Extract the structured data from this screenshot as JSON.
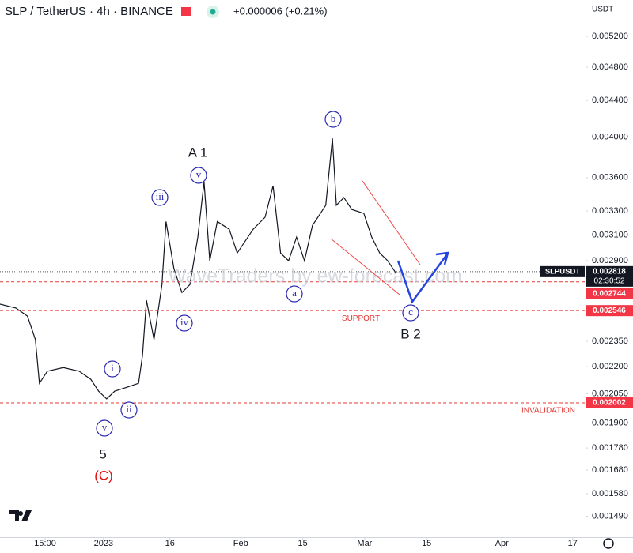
{
  "chart_data": {
    "type": "line",
    "title": "SLP / TetherUS · 4h · BINANCE",
    "change": "+0.000006 (+0.21%)",
    "currency": "USDT",
    "watermark": "WaveTraders by ew-forecast.com",
    "log_scale": true,
    "x": [
      -23.4,
      -19.8,
      -17.2,
      -15.4,
      -14.5,
      -12.7,
      -9.1,
      -5.5,
      -2.9,
      -1.1,
      0.7,
      2.5,
      5.2,
      7.9,
      8.8,
      9.7,
      11.4,
      13.2,
      14.1,
      15.9,
      17.7,
      19.5,
      21.3,
      22.7,
      24.0,
      25.7,
      28.4,
      30.2,
      33.8,
      36.5,
      38.3,
      40.0,
      41.8,
      43.6,
      45.4,
      47.2,
      49.0,
      50.2,
      51.7,
      52.6,
      54.3,
      56.1,
      58.8,
      60.6,
      62.4,
      64.2,
      66.0
    ],
    "series": [
      {
        "name": "SLPUSDT",
        "color": "#131722",
        "values": [
          0.002589,
          0.002563,
          0.00251,
          0.002361,
          0.002107,
          0.002174,
          0.002195,
          0.002174,
          0.002129,
          0.002064,
          0.002023,
          0.002064,
          0.002085,
          0.002107,
          0.002266,
          0.002616,
          0.002361,
          0.002725,
          0.003211,
          0.00284,
          0.002669,
          0.002725,
          0.003083,
          0.00356,
          0.002899,
          0.003211,
          0.003147,
          0.002958,
          0.003147,
          0.003247,
          0.003524,
          0.002958,
          0.002899,
          0.003083,
          0.002899,
          0.003179,
          0.00328,
          0.00335,
          0.003988,
          0.00335,
          0.003418,
          0.003313,
          0.00328,
          0.003083,
          0.002958,
          0.002899,
          0.002811
        ]
      }
    ],
    "xlim": [
      -23.4,
      108.9
    ],
    "ylim": [
      0.001411,
      0.005718
    ],
    "xticks": [
      {
        "value": -13.2,
        "label": "15:00"
      },
      {
        "value": 0,
        "label": "2023"
      },
      {
        "value": 15,
        "label": "16"
      },
      {
        "value": 31,
        "label": "Feb"
      },
      {
        "value": 45,
        "label": "15"
      },
      {
        "value": 59,
        "label": "Mar"
      },
      {
        "value": 73,
        "label": "15"
      },
      {
        "value": 90,
        "label": "Apr"
      },
      {
        "value": 106,
        "label": "17"
      }
    ],
    "yticks": [
      {
        "value": 0.0052,
        "label": "0.005200"
      },
      {
        "value": 0.0048,
        "label": "0.004800"
      },
      {
        "value": 0.0044,
        "label": "0.004400"
      },
      {
        "value": 0.004,
        "label": "0.004000"
      },
      {
        "value": 0.0036,
        "label": "0.003600"
      },
      {
        "value": 0.0033,
        "label": "0.003300"
      },
      {
        "value": 0.0031,
        "label": "0.003100"
      },
      {
        "value": 0.0029,
        "label": "0.002900"
      },
      {
        "value": 0.00235,
        "label": "0.002350"
      },
      {
        "value": 0.0022,
        "label": "0.002200"
      },
      {
        "value": 0.00205,
        "label": "0.002050"
      },
      {
        "value": 0.0019,
        "label": "0.001900"
      },
      {
        "value": 0.00178,
        "label": "0.001780"
      },
      {
        "value": 0.00168,
        "label": "0.001680"
      },
      {
        "value": 0.00158,
        "label": "0.001580"
      },
      {
        "value": 0.00149,
        "label": "0.001490"
      }
    ],
    "last_price": {
      "name": "SLPUSDT",
      "value": 0.002818,
      "countdown": "02:30:52"
    },
    "levels": [
      {
        "value": 0.002744
      },
      {
        "value": 0.002546,
        "label": "SUPPORT"
      },
      {
        "value": 0.002002,
        "label": "INVALIDATION"
      }
    ],
    "annotations": [
      "A 1",
      "v",
      "iii",
      "iv",
      "i",
      "ii",
      "v",
      "5",
      "(C)",
      "a",
      "b",
      "c",
      "B 2"
    ]
  }
}
